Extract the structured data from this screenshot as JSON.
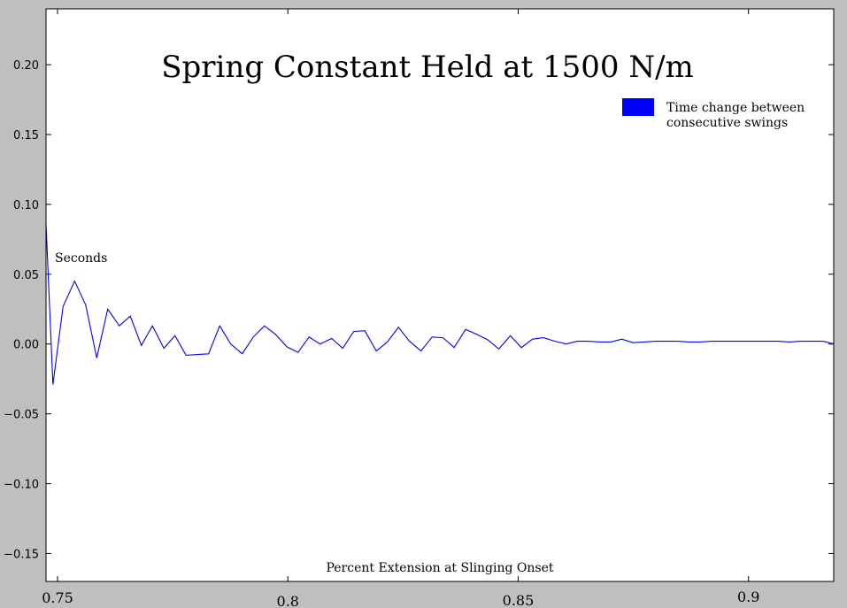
{
  "chart_data": {
    "type": "line",
    "title": "Spring Constant Held at 1500 N/m",
    "xlabel": "Percent Extension at Slinging Onset",
    "ylabel": "Seconds",
    "xlim": [
      0.7475,
      0.9185
    ],
    "ylim": [
      -0.17,
      0.24
    ],
    "grid": false,
    "legend_position": "top-right",
    "x_ticks": [
      {
        "value": 0.75,
        "label": "0.75"
      },
      {
        "value": 0.8,
        "label": "0.8"
      },
      {
        "value": 0.85,
        "label": "0.85"
      },
      {
        "value": 0.9,
        "label": "0.9"
      }
    ],
    "y_ticks": [
      {
        "value": 0.2,
        "label": "0.20"
      },
      {
        "value": 0.15,
        "label": "0.15"
      },
      {
        "value": 0.1,
        "label": "0.10"
      },
      {
        "value": 0.05,
        "label": "0.05"
      },
      {
        "value": 0.0,
        "label": "0.00"
      },
      {
        "value": -0.05,
        "label": "−0.05"
      },
      {
        "value": -0.1,
        "label": "−0.10"
      },
      {
        "value": -0.15,
        "label": "−0.15"
      }
    ],
    "series": [
      {
        "name": "Time change between consecutive swings",
        "color": "#0000ff",
        "x": [
          0.7475,
          0.749,
          0.7512,
          0.7537,
          0.7561,
          0.7585,
          0.7609,
          0.7634,
          0.7658,
          0.7682,
          0.7706,
          0.7731,
          0.7755,
          0.7779,
          0.7804,
          0.7828,
          0.7852,
          0.7876,
          0.7901,
          0.7925,
          0.7949,
          0.7973,
          0.7998,
          0.8022,
          0.8046,
          0.807,
          0.8095,
          0.8119,
          0.8143,
          0.8167,
          0.8192,
          0.8216,
          0.824,
          0.8264,
          0.8289,
          0.8313,
          0.8337,
          0.8361,
          0.8386,
          0.841,
          0.8434,
          0.8458,
          0.8483,
          0.8507,
          0.8531,
          0.8555,
          0.858,
          0.8604,
          0.8628,
          0.8652,
          0.8677,
          0.8701,
          0.8725,
          0.8749,
          0.8774,
          0.8798,
          0.8822,
          0.8846,
          0.8871,
          0.8895,
          0.8919,
          0.8943,
          0.8968,
          0.8992,
          0.9016,
          0.904,
          0.9065,
          0.9089,
          0.9113,
          0.9137,
          0.9162,
          0.9186
        ],
        "y": [
          0.086,
          -0.029,
          0.027,
          0.045,
          0.028,
          -0.01,
          0.025,
          0.013,
          0.02,
          -0.001,
          0.013,
          -0.003,
          0.006,
          -0.008,
          -0.0075,
          -0.007,
          0.013,
          0.0,
          -0.007,
          0.005,
          0.013,
          0.007,
          -0.002,
          -0.006,
          0.005,
          0.0,
          0.004,
          -0.003,
          0.009,
          0.0095,
          -0.005,
          0.0015,
          0.012,
          0.002,
          -0.005,
          0.005,
          0.0045,
          -0.0025,
          0.0105,
          0.007,
          0.003,
          -0.0035,
          0.006,
          -0.0025,
          0.0035,
          0.0045,
          0.002,
          0.0,
          0.002,
          0.002,
          0.0015,
          0.0015,
          0.0035,
          0.001,
          0.0015,
          0.002,
          0.002,
          0.002,
          0.0015,
          0.0015,
          0.002,
          0.002,
          0.002,
          0.002,
          0.002,
          0.002,
          0.002,
          0.0015,
          0.002,
          0.002,
          0.002,
          0.0
        ]
      }
    ]
  }
}
